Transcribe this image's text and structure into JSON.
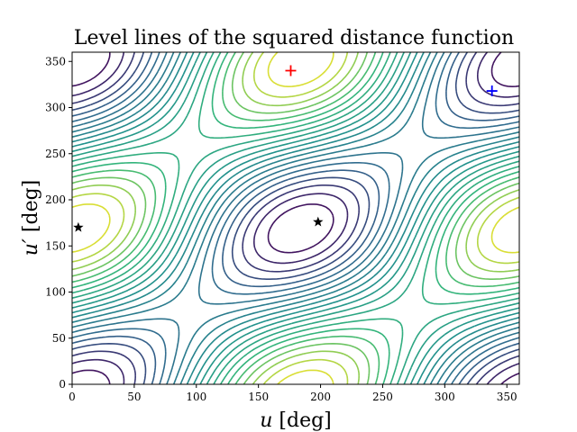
{
  "chart_data": {
    "type": "contour",
    "title": "Level lines of the squared distance function",
    "xlabel_var": "u",
    "xlabel_unit": " [deg]",
    "ylabel_var": "u′",
    "ylabel_unit": " [deg]",
    "xlim": [
      0,
      360
    ],
    "ylim": [
      0,
      360
    ],
    "xticks": [
      0,
      50,
      100,
      150,
      200,
      250,
      300,
      350
    ],
    "yticks": [
      0,
      50,
      100,
      150,
      200,
      250,
      300,
      350
    ],
    "grid": false,
    "colormap": "viridis",
    "colormap_stops": [
      "#440154",
      "#31688e",
      "#21918c",
      "#35b779",
      "#fde725"
    ],
    "markers": [
      {
        "name": "max-marker",
        "shape": "plus",
        "color": "#ff0000",
        "u": 176,
        "u_prime": 340
      },
      {
        "name": "min-marker",
        "shape": "plus",
        "color": "#0000ff",
        "u": 338,
        "u_prime": 318
      },
      {
        "name": "saddle-marker-1",
        "shape": "star",
        "color": "#000000",
        "u": 5,
        "u_prime": 170
      },
      {
        "name": "saddle-marker-2",
        "shape": "star",
        "color": "#000000",
        "u": 198,
        "u_prime": 176
      }
    ]
  }
}
